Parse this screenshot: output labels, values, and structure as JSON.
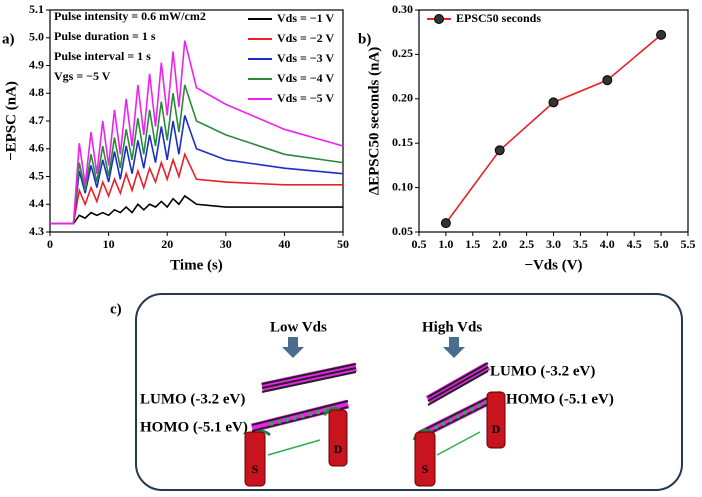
{
  "chart_data": [
    {
      "type": "line",
      "panel": "a)",
      "x_label": "Time (s)",
      "y_label": "−EPSC (nA)",
      "annotations": [
        "Pulse intensity = 0.6 mW/cm2",
        "Pulse duration = 1 s",
        "Pulse interval = 1 s",
        "Vgs = −5 V"
      ],
      "x": [
        0,
        4,
        5,
        6,
        7,
        8,
        9,
        10,
        11,
        12,
        13,
        14,
        15,
        16,
        17,
        18,
        19,
        20,
        21,
        22,
        23,
        25,
        30,
        40,
        50
      ],
      "series": [
        {
          "name": "Vds = −1 V",
          "color": "#000000",
          "values": [
            4.33,
            4.33,
            4.36,
            4.35,
            4.37,
            4.36,
            4.37,
            4.36,
            4.38,
            4.37,
            4.39,
            4.37,
            4.4,
            4.38,
            4.4,
            4.39,
            4.41,
            4.39,
            4.42,
            4.4,
            4.43,
            4.4,
            4.39,
            4.39,
            4.39
          ]
        },
        {
          "name": "Vds = −2 V",
          "color": "#e8202a",
          "values": [
            4.33,
            4.33,
            4.45,
            4.4,
            4.46,
            4.41,
            4.48,
            4.43,
            4.49,
            4.44,
            4.51,
            4.45,
            4.52,
            4.46,
            4.53,
            4.48,
            4.55,
            4.49,
            4.56,
            4.5,
            4.58,
            4.49,
            4.48,
            4.47,
            4.47
          ]
        },
        {
          "name": "Vds = −3 V",
          "color": "#1c2fc4",
          "values": [
            4.33,
            4.33,
            4.52,
            4.44,
            4.54,
            4.46,
            4.56,
            4.48,
            4.59,
            4.49,
            4.61,
            4.51,
            4.63,
            4.53,
            4.65,
            4.55,
            4.68,
            4.56,
            4.7,
            4.58,
            4.72,
            4.6,
            4.56,
            4.53,
            4.51
          ]
        },
        {
          "name": "Vds = −4 V",
          "color": "#2a8a3a",
          "values": [
            4.33,
            4.33,
            4.55,
            4.45,
            4.58,
            4.48,
            4.61,
            4.5,
            4.64,
            4.53,
            4.67,
            4.56,
            4.71,
            4.58,
            4.74,
            4.61,
            4.77,
            4.63,
            4.8,
            4.66,
            4.83,
            4.7,
            4.65,
            4.58,
            4.55
          ]
        },
        {
          "name": "Vds = −5 V",
          "color": "#ee22ee",
          "values": [
            4.33,
            4.33,
            4.62,
            4.47,
            4.66,
            4.51,
            4.7,
            4.54,
            4.74,
            4.58,
            4.78,
            4.61,
            4.83,
            4.65,
            4.87,
            4.68,
            4.91,
            4.72,
            4.95,
            4.75,
            4.99,
            4.82,
            4.76,
            4.67,
            4.61
          ]
        }
      ],
      "xlim": [
        0,
        50
      ],
      "xticks": [
        0,
        10,
        20,
        30,
        40,
        50
      ],
      "ylim": [
        4.3,
        5.1
      ],
      "yticks": [
        4.3,
        4.4,
        4.5,
        4.6,
        4.7,
        4.8,
        4.9,
        {
          "value": 5,
          "label": "5.0"
        },
        5.1
      ],
      "legend": "upper right",
      "markers": false,
      "grid": false
    },
    {
      "type": "line",
      "panel": "b)",
      "x_label": "−Vds (V)",
      "y_label": "ΔEPSC50 seconds (nA)",
      "x": [
        1,
        2,
        3,
        4,
        5
      ],
      "series": [
        {
          "name": "EPSC50 seconds",
          "color": "#e8202a",
          "values": [
            0.06,
            0.142,
            0.196,
            0.221,
            0.272
          ]
        }
      ],
      "xlim": [
        0.5,
        5.5
      ],
      "xticks": [
        0.5,
        {
          "value": 1,
          "label": "1.0"
        },
        1.5,
        {
          "value": 2,
          "label": "2.0"
        },
        2.5,
        {
          "value": 3,
          "label": "3.0"
        },
        3.5,
        {
          "value": 4,
          "label": "4.0"
        },
        4.5,
        {
          "value": 5,
          "label": "5.0"
        },
        5.5
      ],
      "ylim": [
        0.05,
        0.3
      ],
      "yticks": [
        0.05,
        {
          "value": 0.1,
          "label": "0.10"
        },
        0.15,
        {
          "value": 0.2,
          "label": "0.20"
        },
        0.25,
        {
          "value": 0.3,
          "label": "0.30"
        }
      ],
      "legend": "upper left",
      "markers": true,
      "grid": false
    }
  ],
  "diagram": {
    "panel": "c)",
    "low": "Low  Vds",
    "high": "High  Vds",
    "left": {
      "lumo": "LUMO (-3.2 eV)",
      "homo": "HOMO (-5.1 eV)",
      "source": "S",
      "drain": "D"
    },
    "right": {
      "lumo": "LUMO (-3.2 eV)",
      "homo": "HOMO (-5.1 eV)",
      "source": "S",
      "drain": "D"
    }
  }
}
